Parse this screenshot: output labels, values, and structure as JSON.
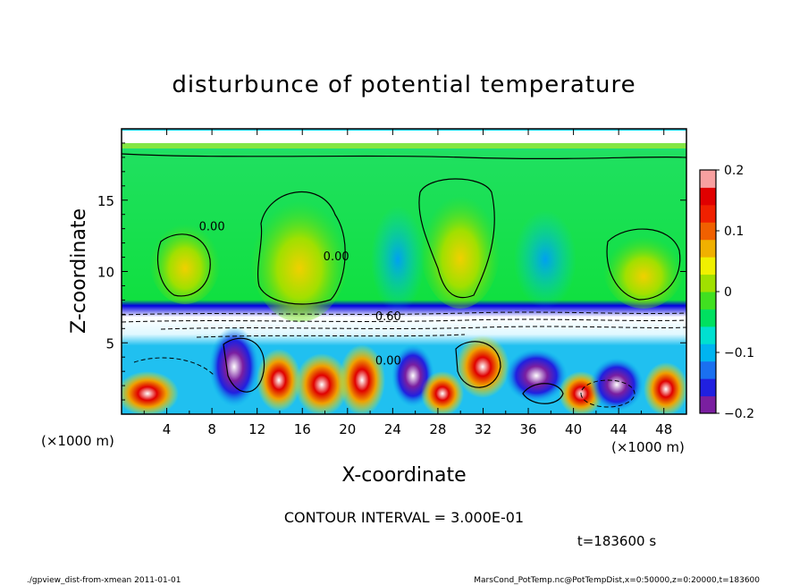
{
  "chart_data": {
    "type": "heatmap",
    "title": "disturbunce of potential temperature",
    "xlabel": "X-coordinate",
    "ylabel": "Z-coordinate",
    "x_unit": "(×1000 m)",
    "y_unit": "(×1000 m)",
    "xlim": [
      0,
      50
    ],
    "ylim": [
      0,
      20
    ],
    "x_ticks": [
      4,
      8,
      12,
      16,
      20,
      24,
      28,
      32,
      36,
      40,
      44,
      48
    ],
    "y_ticks": [
      5,
      10,
      15
    ],
    "colorbar": {
      "min": -0.2,
      "max": 0.2,
      "ticks": [
        0.2,
        0.1,
        0,
        -0.1,
        -0.2
      ],
      "tick_labels": [
        "0.2",
        "0.1",
        "0",
        "−0.1",
        "−0.2"
      ],
      "colors": [
        "#7a1fa0",
        "#2020e0",
        "#1a70f0",
        "#00b4f0",
        "#00e0d0",
        "#00e060",
        "#40e020",
        "#a0e000",
        "#f0f000",
        "#f0b000",
        "#f06000",
        "#f02000",
        "#e00000",
        "#f8a0a0"
      ]
    },
    "contour_labels": [
      {
        "text": "0.00",
        "x": 8,
        "z": 13.2
      },
      {
        "text": "0.00",
        "x": 19,
        "z": 11.1
      },
      {
        "text": "0.60",
        "x": 23.6,
        "z": 6.9
      },
      {
        "text": "0.00",
        "x": 23.6,
        "z": 3.8
      }
    ],
    "contour_interval_text": "CONTOUR INTERVAL = 3.000E-01",
    "time_text": "t=183600 s"
  },
  "footer": {
    "left": "./gpview_dist-from-xmean  2011-01-01",
    "right": "MarsCond_PotTemp.nc@PotTempDist,x=0:50000,z=0:20000,t=183600"
  }
}
